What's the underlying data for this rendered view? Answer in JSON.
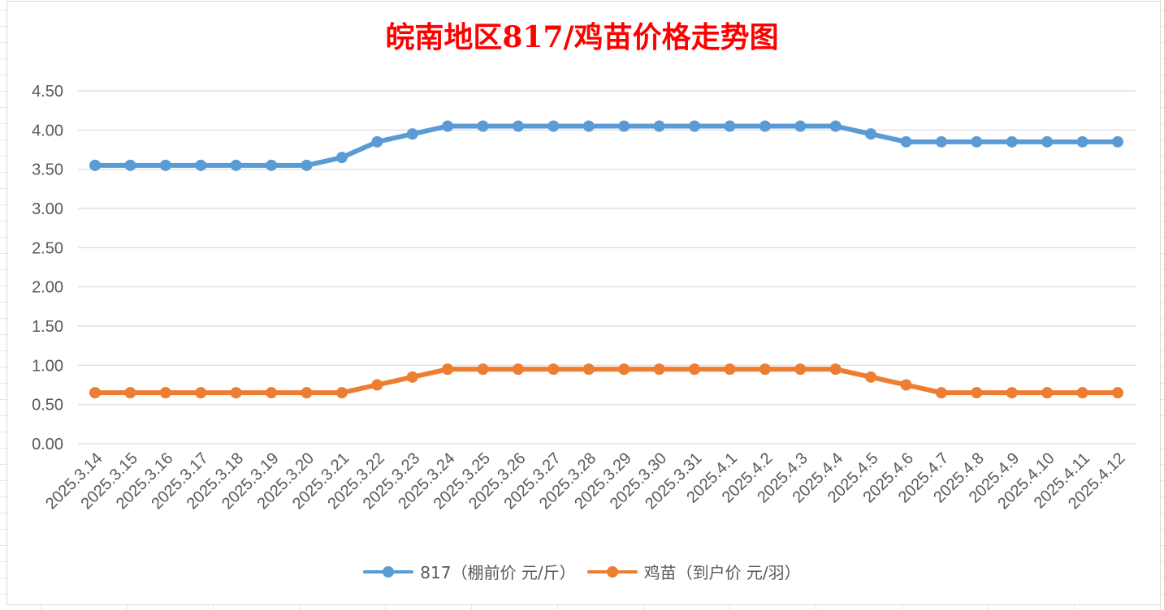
{
  "chart_data": {
    "type": "line",
    "title": "皖南地区817/鸡苗价格走势图",
    "categories": [
      "2025.3.14",
      "2025.3.15",
      "2025.3.16",
      "2025.3.17",
      "2025.3.18",
      "2025.3.19",
      "2025.3.20",
      "2025.3.21",
      "2025.3.22",
      "2025.3.23",
      "2025.3.24",
      "2025.3.25",
      "2025.3.26",
      "2025.3.27",
      "2025.3.28",
      "2025.3.29",
      "2025.3.30",
      "2025.3.31",
      "2025.4.1",
      "2025.4.2",
      "2025.4.3",
      "2025.4.4",
      "2025.4.5",
      "2025.4.6",
      "2025.4.7",
      "2025.4.8",
      "2025.4.9",
      "2025.4.10",
      "2025.4.11",
      "2025.4.12"
    ],
    "series": [
      {
        "name": "817（棚前价 元/斤）",
        "color": "#5b9bd5",
        "values": [
          3.55,
          3.55,
          3.55,
          3.55,
          3.55,
          3.55,
          3.55,
          3.65,
          3.85,
          3.95,
          4.05,
          4.05,
          4.05,
          4.05,
          4.05,
          4.05,
          4.05,
          4.05,
          4.05,
          4.05,
          4.05,
          4.05,
          3.95,
          3.85,
          3.85,
          3.85,
          3.85,
          3.85,
          3.85,
          3.85
        ]
      },
      {
        "name": "鸡苗（到户价 元/羽）",
        "color": "#ed7d31",
        "values": [
          0.65,
          0.65,
          0.65,
          0.65,
          0.65,
          0.65,
          0.65,
          0.65,
          0.75,
          0.85,
          0.95,
          0.95,
          0.95,
          0.95,
          0.95,
          0.95,
          0.95,
          0.95,
          0.95,
          0.95,
          0.95,
          0.95,
          0.85,
          0.75,
          0.65,
          0.65,
          0.65,
          0.65,
          0.65,
          0.65
        ]
      }
    ],
    "ylim": [
      0,
      4.5
    ],
    "yticks": [
      "0.00",
      "0.50",
      "1.00",
      "1.50",
      "2.00",
      "2.50",
      "3.00",
      "3.50",
      "4.00",
      "4.50"
    ],
    "xlabel": "",
    "ylabel": "",
    "grid": true,
    "legend_position": "bottom"
  }
}
